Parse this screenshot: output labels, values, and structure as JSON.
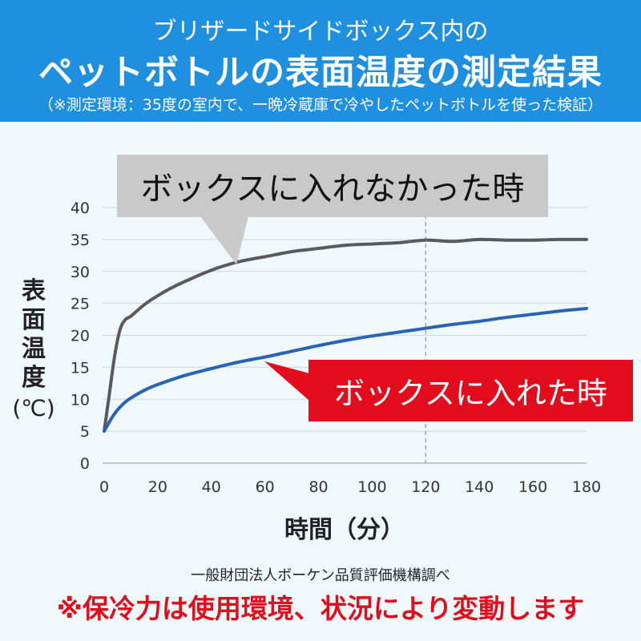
{
  "header": {
    "line1": "ブリザードサイドボックス内の",
    "line2": "ペットボトルの表面温度の測定結果",
    "line3": "（※測定環境：35度の室内で、一晩冷蔵庫で冷やしたペットボトルを使った検証）"
  },
  "chart_data": {
    "type": "line",
    "xlabel": "時間（分）",
    "ylabel": "表面温度",
    "ylabel_unit": "(℃)",
    "xlim": [
      0,
      180
    ],
    "ylim": [
      0,
      40
    ],
    "xticks": [
      "0",
      "20",
      "40",
      "60",
      "80",
      "100",
      "120",
      "140",
      "160",
      "180"
    ],
    "yticks": [
      "0",
      "5",
      "10",
      "15",
      "20",
      "25",
      "30",
      "35",
      "40"
    ],
    "grid": "horizontal",
    "reference_line_x": 120,
    "series": [
      {
        "name": "ボックスに入れなかった時",
        "color": "#5a5a5a",
        "x": [
          0,
          2,
          4,
          6,
          8,
          10,
          15,
          20,
          25,
          30,
          40,
          50,
          60,
          70,
          80,
          90,
          100,
          110,
          120,
          130,
          140,
          150,
          160,
          170,
          180
        ],
        "y": [
          5,
          11,
          17,
          21,
          22.5,
          23,
          24.8,
          26.2,
          27.4,
          28.4,
          30.2,
          31.5,
          32.3,
          33.1,
          33.6,
          34.1,
          34.3,
          34.5,
          34.9,
          34.7,
          35,
          34.9,
          34.9,
          35,
          35
        ]
      },
      {
        "name": "ボックスに入れた時",
        "color": "#2a62b6",
        "x": [
          0,
          2,
          4,
          6,
          8,
          10,
          15,
          20,
          30,
          40,
          50,
          60,
          70,
          80,
          90,
          100,
          110,
          120,
          130,
          140,
          150,
          160,
          170,
          180
        ],
        "y": [
          5,
          6.5,
          7.8,
          8.8,
          9.6,
          10.2,
          11.4,
          12.3,
          13.7,
          14.8,
          15.8,
          16.6,
          17.5,
          18.4,
          19.2,
          19.9,
          20.5,
          21.1,
          21.7,
          22.2,
          22.8,
          23.3,
          23.8,
          24.2
        ]
      }
    ]
  },
  "callouts": {
    "gray": "ボックスに入れなかった時",
    "red": "ボックスに入れた時"
  },
  "footer": {
    "source": "一般財団法人ボーケン品質評価機構調べ",
    "note": "※保冷力は使用環境、状況により変動します"
  },
  "colors": {
    "header_bg": "#1f8fe0",
    "background": "#eff9fb",
    "callout_gray": "#c9c9c9",
    "callout_red": "#e30c1c",
    "note_text": "#e30c1c"
  }
}
